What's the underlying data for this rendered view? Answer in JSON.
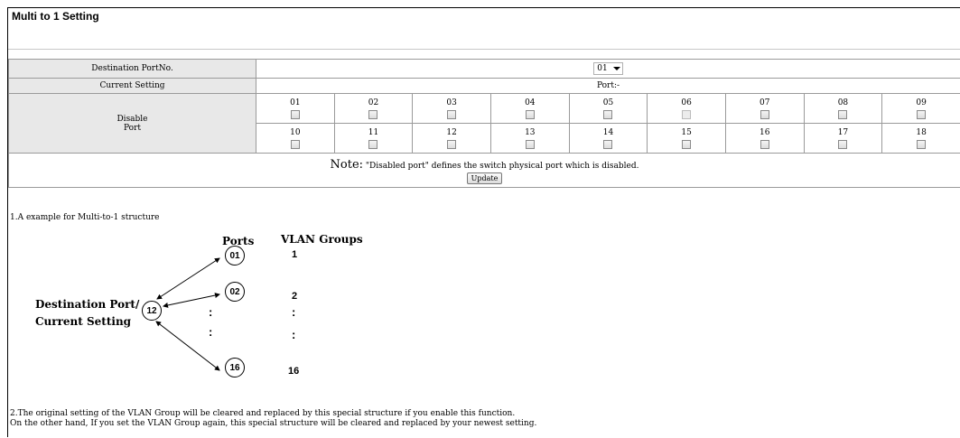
{
  "page": {
    "title": "Multi to 1 Setting"
  },
  "destination": {
    "label": "Destination PortNo.",
    "selected": "01"
  },
  "current": {
    "label": "Current Setting",
    "value": "Port:-"
  },
  "disable": {
    "label_line1": "Disable",
    "label_line2": "Port",
    "row1": [
      "01",
      "02",
      "03",
      "04",
      "05",
      "06",
      "07",
      "08",
      "09"
    ],
    "row2": [
      "10",
      "11",
      "12",
      "13",
      "14",
      "15",
      "16",
      "17",
      "18"
    ],
    "disabled_checkbox": "06"
  },
  "note": {
    "word": "Note:",
    "text": " \"Disabled port\" defines the switch physical port which is disabled.",
    "update_label": "Update"
  },
  "example": {
    "line1": "1.A example for Multi-to-1 structure",
    "header_ports": "Ports",
    "header_groups": "VLAN Groups",
    "dest_line1": "Destination Port/",
    "dest_line2": "Current Setting",
    "center_port": "12",
    "ports": [
      "01",
      "02",
      "16"
    ],
    "groups": [
      "1",
      "2",
      "16"
    ],
    "vdots": ":",
    "line2": "2.The original setting of the VLAN Group will be cleared and replaced by this special structure if you enable this function.",
    "line3": "On the other hand, If you set the VLAN Group again, this special structure will be cleared and replaced by your newest setting."
  }
}
